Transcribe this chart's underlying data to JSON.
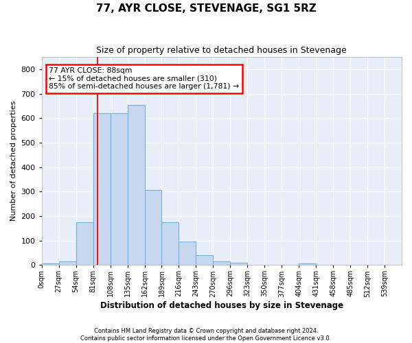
{
  "title": "77, AYR CLOSE, STEVENAGE, SG1 5RZ",
  "subtitle": "Size of property relative to detached houses in Stevenage",
  "xlabel": "Distribution of detached houses by size in Stevenage",
  "ylabel": "Number of detached properties",
  "bar_color": "#c5d8f0",
  "bar_edge_color": "#7aaed6",
  "background_color": "#e8eef8",
  "grid_color": "#ffffff",
  "bin_labels": [
    "0sqm",
    "27sqm",
    "54sqm",
    "81sqm",
    "108sqm",
    "135sqm",
    "162sqm",
    "189sqm",
    "216sqm",
    "243sqm",
    "270sqm",
    "296sqm",
    "323sqm",
    "350sqm",
    "377sqm",
    "404sqm",
    "431sqm",
    "458sqm",
    "485sqm",
    "512sqm",
    "539sqm"
  ],
  "bar_values": [
    7,
    14,
    175,
    620,
    620,
    655,
    305,
    175,
    97,
    40,
    14,
    10,
    0,
    0,
    0,
    5,
    0,
    0,
    0,
    0,
    0
  ],
  "ylim": [
    0,
    850
  ],
  "yticks": [
    0,
    100,
    200,
    300,
    400,
    500,
    600,
    700,
    800
  ],
  "property_line_x": 88,
  "bin_width": 27,
  "annotation_text": "77 AYR CLOSE: 88sqm\n← 15% of detached houses are smaller (310)\n85% of semi-detached houses are larger (1,781) →",
  "footer_line1": "Contains HM Land Registry data © Crown copyright and database right 2024.",
  "footer_line2": "Contains public sector information licensed under the Open Government Licence v3.0."
}
